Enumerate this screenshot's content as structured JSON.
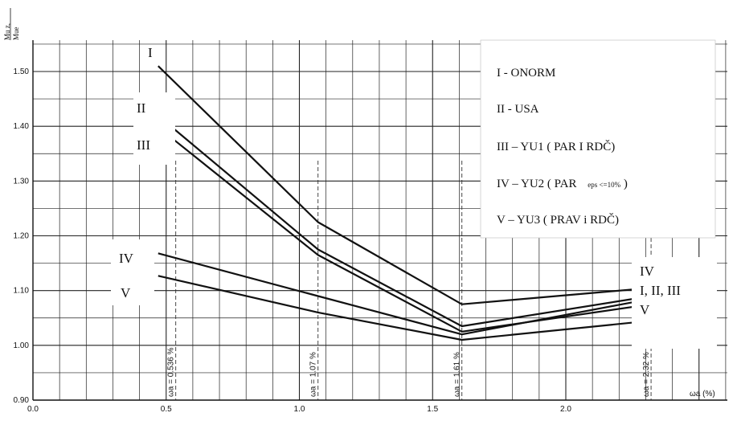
{
  "chart_data": {
    "type": "line",
    "title": "",
    "ylabel_top": "Mu z,",
    "ylabel_bottom": "Mue",
    "xlabel": "ωa (%)",
    "xlim": [
      0.0,
      2.3
    ],
    "ylim": [
      0.9,
      1.55
    ],
    "x_ticks": [
      "0.0",
      "0.5",
      "1.0",
      "1.5",
      "2.0"
    ],
    "x_tick_values": [
      0.0,
      0.5,
      1.0,
      1.5,
      2.0
    ],
    "y_ticks": [
      "0.90",
      "1.00",
      "1.10",
      "1.20",
      "1.30",
      "1.40",
      "1.50"
    ],
    "y_tick_values": [
      0.9,
      1.0,
      1.1,
      1.2,
      1.3,
      1.4,
      1.5
    ],
    "grid": true,
    "series": [
      {
        "name": "I - ONORM",
        "x": [
          0.47,
          1.07,
          1.61,
          2.32
        ],
        "y": [
          1.51,
          1.225,
          1.075,
          1.105
        ]
      },
      {
        "name": "II - USA",
        "x": [
          0.53,
          1.07,
          1.61,
          2.32
        ],
        "y": [
          1.395,
          1.175,
          1.035,
          1.09
        ]
      },
      {
        "name": "III – YU1 (PAR I RDČ)",
        "x": [
          0.53,
          1.07,
          1.61,
          2.32
        ],
        "y": [
          1.375,
          1.165,
          1.025,
          1.075
        ]
      },
      {
        "name": "IV – YU2 (PAR eps <=10%)",
        "x": [
          0.47,
          1.07,
          1.61,
          2.32
        ],
        "y": [
          1.168,
          1.09,
          1.02,
          1.085
        ]
      },
      {
        "name": "V – YU3 (PRAV i RDČ)",
        "x": [
          0.47,
          1.07,
          1.61,
          2.32
        ],
        "y": [
          1.127,
          1.06,
          1.01,
          1.045
        ]
      }
    ],
    "left_labels": [
      {
        "text": "I",
        "series": 0
      },
      {
        "text": "II",
        "series": 1
      },
      {
        "text": "III",
        "series": 2
      },
      {
        "text": "IV",
        "series": 3
      },
      {
        "text": "V",
        "series": 4
      }
    ],
    "right_labels": [
      "IV",
      "I, II, III",
      "V"
    ],
    "legend": [
      {
        "roman": "I",
        "text": "I - ONORM"
      },
      {
        "roman": "II",
        "text": "II - USA"
      },
      {
        "roman": "III",
        "text": "III – YU1 ( PAR I RDČ)"
      },
      {
        "roman": "IV",
        "text": "IV – YU2 ( PAR",
        "small": "eps <=10%",
        "after": ")"
      },
      {
        "roman": "V",
        "text": "V – YU3 ( PRAV  i  RDČ)"
      }
    ],
    "legend_placement": "top-right",
    "markers": [
      {
        "x": 0.536,
        "label": "ωa = 0.536 %"
      },
      {
        "x": 1.07,
        "label": "ωa = 1.07 %"
      },
      {
        "x": 1.61,
        "label": "ωa = 1.61 %"
      },
      {
        "x": 2.32,
        "label": "ωa = 2.32 %"
      }
    ]
  }
}
